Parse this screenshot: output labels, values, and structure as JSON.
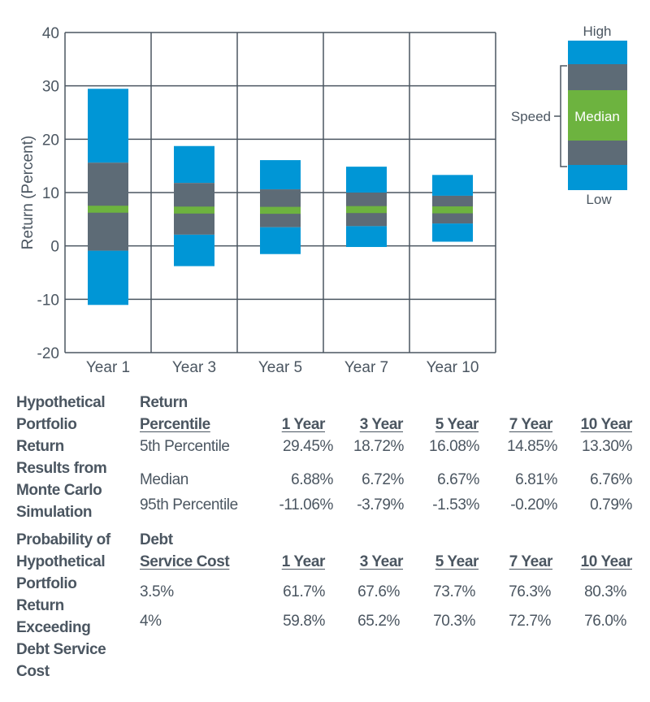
{
  "chart_data": {
    "type": "box",
    "ylabel": "Return (Percent)",
    "ylim": [
      -20,
      40
    ],
    "yticks": [
      40,
      30,
      20,
      10,
      0,
      -10,
      -20
    ],
    "grid": true,
    "categories": [
      "Year 1",
      "Year 3",
      "Year 5",
      "Year 7",
      "Year 10"
    ],
    "high": [
      29.45,
      18.72,
      16.08,
      14.85,
      13.3
    ],
    "upper_inner": [
      15.6,
      11.8,
      10.6,
      10.0,
      9.4
    ],
    "median": [
      6.88,
      6.72,
      6.67,
      6.81,
      6.76
    ],
    "lower_inner": [
      -0.9,
      2.1,
      3.5,
      3.7,
      4.2
    ],
    "low": [
      -11.06,
      -3.79,
      -1.53,
      -0.2,
      0.79
    ],
    "colors": {
      "outer": "#0096d6",
      "inner": "#5d6b76",
      "median": "#6db33f",
      "grid": "#4b5661"
    },
    "legend": {
      "high": "High",
      "low": "Low",
      "median": "Median",
      "speed": "Speed",
      "placement": "top-right"
    }
  },
  "table1": {
    "title_lines": [
      "Hypothetical",
      "Portfolio",
      "Return",
      "Results from",
      "Monte Carlo",
      "Simulation"
    ],
    "header_lines": [
      "Return",
      "Percentile"
    ],
    "columns": [
      "1 Year",
      "3 Year",
      "5 Year",
      "7 Year",
      "10 Year"
    ],
    "rows": [
      {
        "label": "5th Percentile",
        "values": [
          "29.45%",
          "18.72%",
          "16.08%",
          "14.85%",
          "13.30%"
        ]
      },
      {
        "label": "Median",
        "values": [
          "6.88%",
          "6.72%",
          "6.67%",
          "6.81%",
          "6.76%"
        ]
      },
      {
        "label": "95th Percentile",
        "values": [
          "-11.06%",
          "-3.79%",
          "-1.53%",
          "-0.20%",
          "0.79%"
        ]
      }
    ]
  },
  "table2": {
    "title_lines": [
      "Probability of",
      "Hypothetical",
      "Portfolio",
      "Return",
      "Exceeding",
      "Debt Service",
      "Cost"
    ],
    "header_lines": [
      "Debt",
      "Service Cost"
    ],
    "columns": [
      "1 Year",
      "3 Year",
      "5 Year",
      "7 Year",
      "10 Year"
    ],
    "rows": [
      {
        "label": "3.5%",
        "values": [
          "61.7%",
          "67.6%",
          "73.7%",
          "76.3%",
          "80.3%"
        ]
      },
      {
        "label": "4%",
        "values": [
          "59.8%",
          "65.2%",
          "70.3%",
          "72.7%",
          "76.0%"
        ]
      }
    ]
  }
}
